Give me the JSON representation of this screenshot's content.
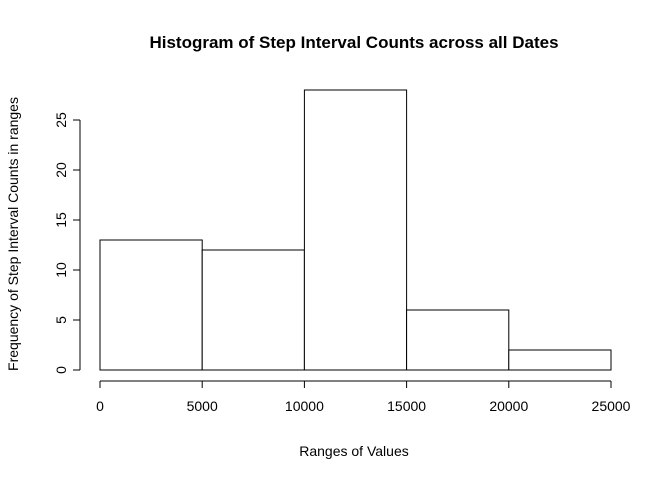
{
  "chart_data": {
    "type": "bar",
    "subtype": "histogram",
    "title": "Histogram of Step Interval Counts across all Dates",
    "xlabel": "Ranges of Values",
    "ylabel": "Frequency of Step Interval Counts in ranges",
    "bins": [
      {
        "from": 0,
        "to": 5000,
        "count": 13
      },
      {
        "from": 5000,
        "to": 10000,
        "count": 12
      },
      {
        "from": 10000,
        "to": 15000,
        "count": 28
      },
      {
        "from": 15000,
        "to": 20000,
        "count": 6
      },
      {
        "from": 20000,
        "to": 25000,
        "count": 2
      }
    ],
    "xlim": [
      0,
      25000
    ],
    "ylim": [
      0,
      28
    ],
    "xticks": [
      0,
      5000,
      10000,
      15000,
      20000,
      25000
    ],
    "yticks": [
      0,
      5,
      10,
      15,
      20,
      25
    ],
    "grid": false,
    "bar_fill": "#ffffff",
    "bar_stroke": "#000000"
  }
}
